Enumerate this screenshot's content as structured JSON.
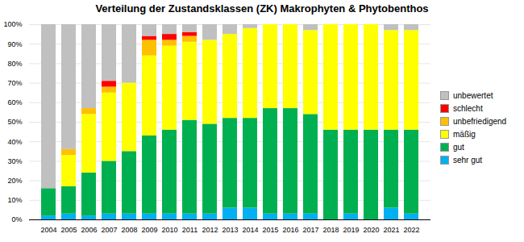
{
  "chart_data": {
    "type": "bar",
    "stacked": true,
    "title": "Verteilung der Zustandsklassen (ZK) Makrophyten & Phytobenthos",
    "categories": [
      "2004",
      "2005",
      "2006",
      "2007",
      "2008",
      "2009",
      "2010",
      "2011",
      "2012",
      "2013",
      "2014",
      "2015",
      "2016",
      "2017",
      "2018",
      "2019",
      "2020",
      "2021",
      "2022"
    ],
    "series": [
      {
        "name": "sehr gut",
        "color": "#00b0f0",
        "values": [
          2,
          3,
          2,
          3,
          3,
          3,
          3,
          3,
          3,
          6,
          6,
          3,
          3,
          3,
          0,
          3,
          0,
          6,
          3
        ]
      },
      {
        "name": "gut",
        "color": "#00b050",
        "values": [
          14,
          14,
          22,
          27,
          32,
          40,
          43,
          48,
          46,
          46,
          46,
          54,
          54,
          51,
          46,
          43,
          46,
          40,
          43
        ]
      },
      {
        "name": "mäßig",
        "color": "#ffff00",
        "values": [
          0,
          16,
          30,
          35,
          35,
          41,
          43,
          40,
          43,
          43,
          46,
          43,
          43,
          43,
          54,
          54,
          54,
          51,
          51
        ]
      },
      {
        "name": "unbefriedigend",
        "color": "#ffc000",
        "values": [
          0,
          3,
          3,
          3,
          0,
          8,
          3,
          3,
          0,
          0,
          0,
          0,
          0,
          0,
          0,
          0,
          0,
          0,
          0
        ]
      },
      {
        "name": "schlecht",
        "color": "#ff0000",
        "values": [
          0,
          0,
          0,
          3,
          0,
          2,
          3,
          2,
          0,
          0,
          0,
          0,
          0,
          0,
          0,
          0,
          0,
          0,
          0
        ]
      },
      {
        "name": "unbewertet",
        "color": "#c0c0c0",
        "values": [
          84,
          64,
          43,
          29,
          30,
          6,
          5,
          4,
          8,
          5,
          2,
          0,
          0,
          3,
          0,
          0,
          0,
          3,
          3
        ]
      }
    ],
    "ylim": [
      0,
      100
    ],
    "yticks": [
      {
        "value": 0,
        "label": "0%"
      },
      {
        "value": 10,
        "label": "10%"
      },
      {
        "value": 20,
        "label": "20%"
      },
      {
        "value": 30,
        "label": "30%"
      },
      {
        "value": 40,
        "label": "40%"
      },
      {
        "value": 50,
        "label": "50%"
      },
      {
        "value": 60,
        "label": "60%"
      },
      {
        "value": 70,
        "label": "70%"
      },
      {
        "value": 80,
        "label": "80%"
      },
      {
        "value": 90,
        "label": "90%"
      },
      {
        "value": 100,
        "label": "100%"
      }
    ],
    "grid": true,
    "legend": "right"
  }
}
